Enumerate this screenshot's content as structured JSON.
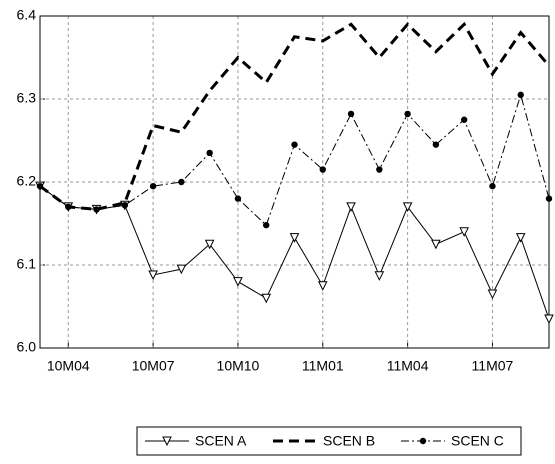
{
  "chart_data": {
    "type": "line",
    "categories": [
      null,
      "10M04",
      null,
      null,
      "10M07",
      null,
      null,
      "10M10",
      null,
      null,
      "11M01",
      null,
      null,
      "11M04",
      null,
      null,
      "11M07",
      null,
      null
    ],
    "series": [
      {
        "name": "SCEN A",
        "color": "#000000",
        "dash": "solid",
        "marker": "triangle-down",
        "line_width": 1,
        "values": [
          6.195,
          6.17,
          6.167,
          6.172,
          6.088,
          6.095,
          6.125,
          6.08,
          6.06,
          6.133,
          6.075,
          6.17,
          6.087,
          6.17,
          6.125,
          6.14,
          6.065,
          6.133,
          6.035
        ]
      },
      {
        "name": "SCEN B",
        "color": "#000000",
        "dash": "long",
        "marker": "none",
        "line_width": 3,
        "values": [
          6.195,
          6.17,
          6.167,
          6.175,
          6.268,
          6.26,
          6.31,
          6.35,
          6.32,
          6.375,
          6.37,
          6.39,
          6.35,
          6.39,
          6.357,
          6.39,
          6.33,
          6.38,
          6.34
        ]
      },
      {
        "name": "SCEN C",
        "color": "#000000",
        "dash": "dashdot",
        "marker": "circle",
        "line_width": 1,
        "values": [
          6.195,
          6.17,
          6.167,
          6.172,
          6.195,
          6.2,
          6.235,
          6.18,
          6.148,
          6.245,
          6.215,
          6.282,
          6.215,
          6.282,
          6.245,
          6.275,
          6.195,
          6.305,
          6.18
        ]
      }
    ],
    "ylim": [
      6.0,
      6.4
    ],
    "yticks": [
      {
        "value": 6.0,
        "label": "6.0"
      },
      6.1,
      6.2,
      6.3,
      6.4
    ],
    "grid": true,
    "legend": "bottom"
  }
}
